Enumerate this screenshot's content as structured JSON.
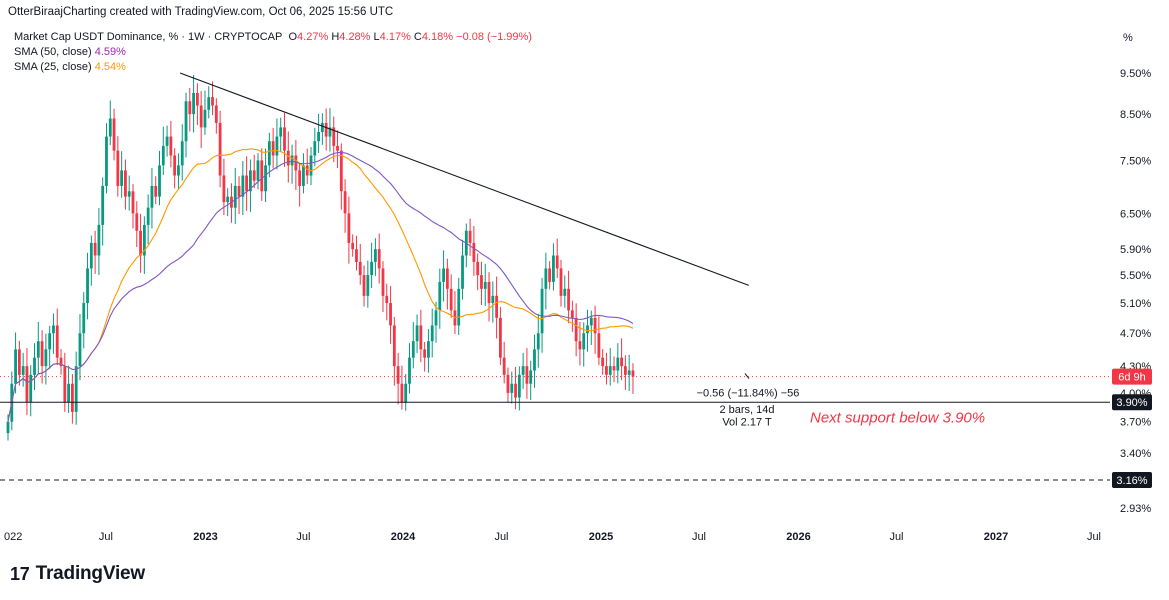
{
  "header": {
    "text": "OtterBiraajCharting created with TradingView.com, Oct 06, 2025 15:56 UTC"
  },
  "legend": {
    "symbol": "Market Cap USDT Dominance, % · 1W · CRYPTOCAP",
    "o_label": "O",
    "o_value": "4.27%",
    "h_label": "H",
    "h_value": "4.28%",
    "l_label": "L",
    "l_value": "4.17%",
    "c_label": "C",
    "c_value": "4.18%",
    "change": "−0.08 (−1.99%)",
    "sma50_label": "SMA (50, close)",
    "sma50_value": "4.59%",
    "sma25_label": "SMA (25, close)",
    "sma25_value": "4.54%"
  },
  "axis_unit": "%",
  "logo": {
    "mark": "17",
    "text": "TradingView"
  },
  "colors": {
    "up": "#089981",
    "down": "#f23645",
    "sma50": "#7e57c2",
    "sma25": "#ff9800",
    "trend": "#131722"
  },
  "chart_data": {
    "type": "candlestick",
    "y_scale": "log",
    "y_ticks": [
      "9.50%",
      "8.50%",
      "7.50%",
      "6.50%",
      "5.90%",
      "5.50%",
      "5.10%",
      "4.70%",
      "4.30%",
      "4.00%",
      "3.70%",
      "3.40%",
      "2.93%"
    ],
    "y_tick_values": [
      9.5,
      8.5,
      7.5,
      6.5,
      5.9,
      5.5,
      5.1,
      4.7,
      4.3,
      4.0,
      3.7,
      3.4,
      2.93
    ],
    "x_ticks": [
      "022",
      "Jul",
      "2023",
      "Jul",
      "2024",
      "Jul",
      "2025",
      "Jul",
      "2026",
      "Jul",
      "2027",
      "Jul"
    ],
    "x_tick_dates": [
      "2022-01-01",
      "2022-07-01",
      "2023-01-01",
      "2023-07-01",
      "2024-01-01",
      "2024-07-01",
      "2025-01-01",
      "2025-07-01",
      "2026-01-01",
      "2026-07-01",
      "2027-01-01",
      "2027-07-01"
    ],
    "price_badges": [
      {
        "label": "6d 9h",
        "value": 4.18,
        "color": "#f23645"
      },
      {
        "label": "3.90%",
        "value": 3.9,
        "color": "#131722"
      },
      {
        "label": "3.16%",
        "value": 3.16,
        "color": "#131722"
      }
    ],
    "horizontal_lines": [
      {
        "value": 3.9,
        "style": "solid"
      },
      {
        "value": 3.16,
        "style": "dashed"
      },
      {
        "value": 4.18,
        "style": "dotted-red"
      }
    ],
    "trendline": [
      {
        "date": "2022-11-15",
        "value": 9.5
      },
      {
        "date": "2025-10-01",
        "value": 5.35
      }
    ],
    "annotations": {
      "measure": "−0.56 (−11.84%) −56",
      "bars": "2 bars, 14d",
      "vol": "Vol 2.17 T",
      "support": "Next support below 3.90%"
    },
    "weekly_close": [
      3.7,
      4.1,
      4.5,
      4.2,
      4.3,
      3.9,
      4.2,
      4.4,
      4.6,
      4.3,
      4.5,
      4.7,
      4.8,
      4.4,
      4.3,
      3.9,
      4.1,
      3.8,
      4.3,
      4.7,
      5.1,
      5.6,
      6.0,
      5.8,
      6.3,
      7.0,
      8.0,
      8.4,
      7.7,
      7.0,
      7.3,
      6.8,
      6.9,
      6.5,
      6.2,
      5.8,
      6.3,
      6.6,
      7.0,
      6.8,
      7.4,
      7.8,
      8.0,
      7.6,
      7.2,
      7.4,
      7.9,
      8.8,
      8.5,
      9.0,
      8.7,
      8.2,
      8.6,
      8.9,
      8.7,
      8.3,
      7.2,
      6.7,
      6.8,
      6.6,
      7.0,
      6.8,
      7.2,
      6.9,
      7.3,
      7.1,
      7.5,
      6.9,
      7.4,
      7.9,
      7.6,
      8.0,
      8.2,
      7.7,
      7.4,
      7.6,
      7.3,
      7.0,
      7.4,
      7.2,
      7.6,
      7.9,
      8.1,
      8.3,
      8.0,
      8.2,
      7.8,
      7.7,
      6.9,
      6.5,
      6.0,
      5.9,
      5.7,
      5.5,
      5.2,
      5.5,
      5.7,
      5.9,
      5.6,
      5.2,
      5.1,
      4.8,
      4.3,
      4.1,
      3.9,
      4.1,
      4.4,
      4.6,
      4.8,
      4.5,
      4.4,
      4.6,
      4.8,
      5.0,
      5.4,
      5.6,
      5.3,
      5.0,
      4.8,
      5.3,
      5.8,
      6.2,
      6.0,
      5.7,
      5.5,
      5.3,
      5.4,
      5.1,
      5.2,
      4.9,
      4.4,
      4.2,
      4.0,
      4.1,
      3.95,
      4.2,
      4.3,
      4.1,
      4.25,
      4.5,
      4.7,
      5.3,
      5.6,
      5.4,
      5.8,
      5.6,
      5.2,
      5.3,
      5.0,
      4.9,
      4.6,
      4.5,
      4.7,
      4.8,
      4.9,
      4.7,
      4.4,
      4.3,
      4.2,
      4.3,
      4.25,
      4.4,
      4.3,
      4.2,
      4.25,
      4.18
    ],
    "weekly_start": "2022-01-01"
  }
}
